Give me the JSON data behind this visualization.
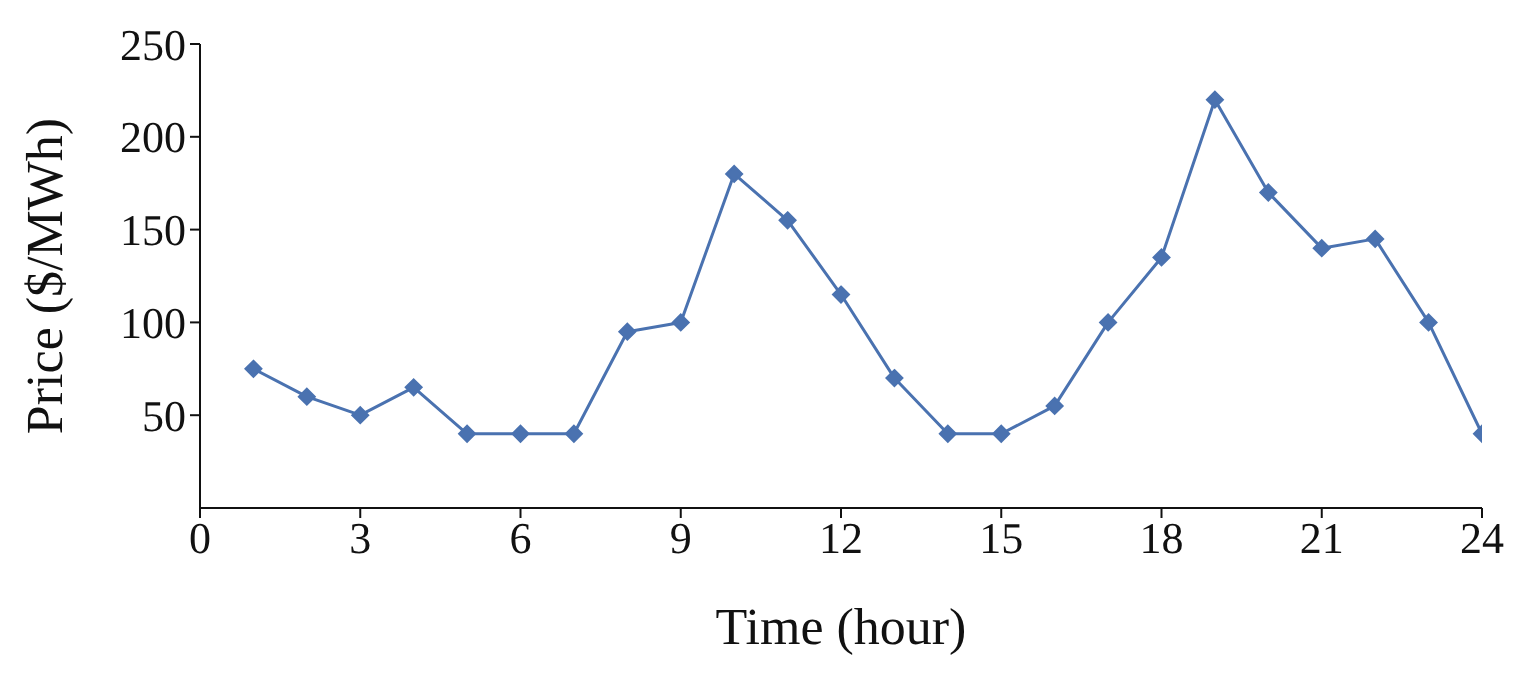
{
  "chart_data": {
    "type": "line",
    "xlabel": "Time (hour)",
    "ylabel": "Price ($/MWh)",
    "x": [
      1,
      2,
      3,
      4,
      5,
      6,
      7,
      8,
      9,
      10,
      11,
      12,
      13,
      14,
      15,
      16,
      17,
      18,
      19,
      20,
      21,
      22,
      23,
      24
    ],
    "series": [
      {
        "color": "#4a72b0",
        "values": [
          75,
          60,
          50,
          65,
          40,
          40,
          40,
          95,
          100,
          180,
          155,
          115,
          70,
          40,
          40,
          55,
          100,
          135,
          220,
          170,
          140,
          145,
          100,
          40
        ]
      }
    ],
    "xlim": [
      0,
      24
    ],
    "xticks": [
      0,
      3,
      6,
      9,
      12,
      15,
      18,
      21,
      24
    ],
    "ylim": [
      0,
      250
    ],
    "yticks": [
      50,
      100,
      150,
      200,
      250
    ],
    "grid": false,
    "legend": false,
    "marker": "diamond",
    "line_style": "solid"
  }
}
